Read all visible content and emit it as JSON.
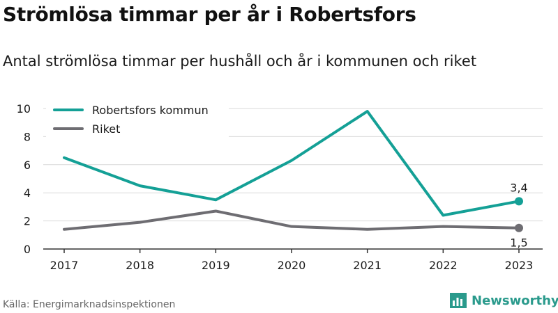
{
  "title": "Strömlösa timmar per år i Robertsfors",
  "subtitle": "Antal strömlösa timmar per hushåll och år i kommunen och riket",
  "source": "Källa: Energimarknadsinspektionen",
  "brand": {
    "name": "Newsworthy",
    "icon": "bar-chart-logo-icon",
    "color": "#2a9a8c"
  },
  "chart_data": {
    "type": "line",
    "x": [
      "2017",
      "2018",
      "2019",
      "2020",
      "2021",
      "2022",
      "2023"
    ],
    "ylim": [
      0,
      10
    ],
    "yticks": [
      0,
      2,
      4,
      6,
      8,
      10
    ],
    "grid": true,
    "legend_position": "top-left",
    "series": [
      {
        "name": "Robertsfors kommun",
        "color": "#14a096",
        "values": [
          6.5,
          4.5,
          3.5,
          6.3,
          9.8,
          2.4,
          3.4
        ],
        "end_label": "3,4"
      },
      {
        "name": "Riket",
        "color": "#6e6d72",
        "values": [
          1.4,
          1.9,
          2.7,
          1.6,
          1.4,
          1.6,
          1.5
        ],
        "end_label": "1,5"
      }
    ]
  }
}
